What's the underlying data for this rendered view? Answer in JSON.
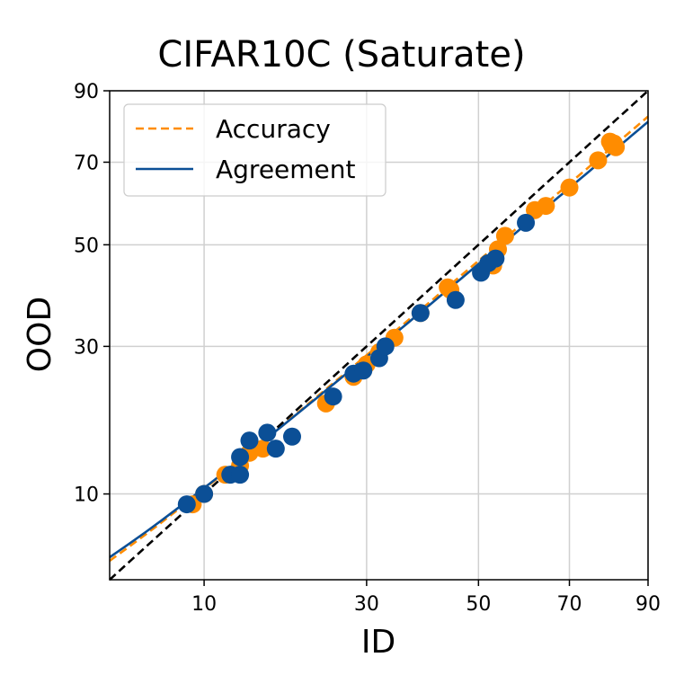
{
  "chart_data": {
    "type": "scatter",
    "title": "CIFAR10C (Saturate)",
    "xlabel": "ID",
    "ylabel": "OOD",
    "xlim": [
      3.3,
      90
    ],
    "ylim": [
      3.3,
      90
    ],
    "xticks": [
      10,
      30,
      50,
      70,
      90
    ],
    "yticks": [
      10,
      30,
      50,
      70,
      90
    ],
    "grid": true,
    "legend_position": "top-left",
    "series": [
      {
        "name": "Accuracy",
        "kind": "points",
        "color": "#ff8c00",
        "points": [
          [
            9,
            9
          ],
          [
            10,
            10
          ],
          [
            12,
            12
          ],
          [
            13.5,
            13
          ],
          [
            14.5,
            14.5
          ],
          [
            16,
            15
          ],
          [
            24,
            21
          ],
          [
            28,
            25
          ],
          [
            30,
            27
          ],
          [
            32,
            29
          ],
          [
            34.5,
            31.5
          ],
          [
            39,
            36
          ],
          [
            44,
            41
          ],
          [
            44.5,
            40.5
          ],
          [
            52,
            46
          ],
          [
            53,
            45.5
          ],
          [
            54,
            49
          ],
          [
            55.5,
            52
          ],
          [
            62,
            58
          ],
          [
            64.5,
            59
          ],
          [
            70,
            63.5
          ],
          [
            77,
            70.5
          ],
          [
            80,
            75.5
          ],
          [
            80.5,
            74.5
          ],
          [
            81,
            75
          ],
          [
            81.5,
            74
          ]
        ]
      },
      {
        "name": "Agreement",
        "kind": "points",
        "color": "#0b4f96",
        "points": [
          [
            8.5,
            9
          ],
          [
            10,
            10
          ],
          [
            12.5,
            12
          ],
          [
            13.5,
            14
          ],
          [
            13.5,
            12
          ],
          [
            14.5,
            16
          ],
          [
            16.5,
            17
          ],
          [
            17.5,
            15
          ],
          [
            19.5,
            16.5
          ],
          [
            25,
            22
          ],
          [
            28,
            25.5
          ],
          [
            29.5,
            26
          ],
          [
            32,
            28
          ],
          [
            33,
            30
          ],
          [
            39,
            36
          ],
          [
            45.5,
            38.5
          ],
          [
            50.5,
            44
          ],
          [
            52,
            46
          ],
          [
            53.5,
            47
          ],
          [
            60,
            55
          ]
        ]
      },
      {
        "name": "Accuracy",
        "kind": "fit-line",
        "style": "dashed",
        "color": "#ff8c00",
        "slope": 0.9,
        "intercept": 1.5
      },
      {
        "name": "Agreement",
        "kind": "fit-line",
        "style": "solid",
        "color": "#0b4f96",
        "slope": 0.88,
        "intercept": 1.8
      },
      {
        "name": "",
        "kind": "reference",
        "style": "dashed",
        "color": "#000000",
        "slope": 1,
        "intercept": 0
      }
    ],
    "legend": [
      {
        "label": "Accuracy",
        "color": "#ff8c00",
        "style": "dashed"
      },
      {
        "label": "Agreement",
        "color": "#0b4f96",
        "style": "solid"
      }
    ]
  }
}
